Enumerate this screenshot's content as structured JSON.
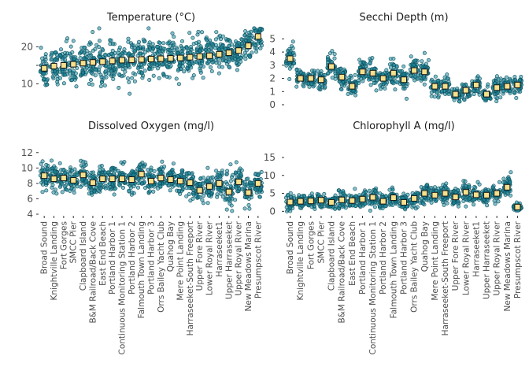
{
  "chart_data": {
    "type": "scatter",
    "sites": [
      "Broad Sound",
      "Knightville Landing",
      "Fort Gorges",
      "SMCC Pier",
      "Clapboard Island",
      "B&M Railroad/Back Cove",
      "East End Beach",
      "Portland Harbor 1",
      "Continuous Monitoring Station 1",
      "Portland Harbor 2",
      "Falmouth Town Landing",
      "Portland Harbor 3",
      "Orrs Bailey Yacht Club",
      "Quahog Bay",
      "Mere Point Landing",
      "Harraseeket-South Freeport",
      "Upper Fore River",
      "Lower Royal River",
      "Harraseeket1",
      "Upper Harraseeket",
      "Upper Royal River",
      "New Meadows Marina",
      "Presumpscot River"
    ],
    "panels": [
      {
        "id": "temperature",
        "title": "Temperature (°C)",
        "ylim": [
          5,
          25
        ],
        "yticks": [
          10,
          15,
          20
        ],
        "ytick_labels": [
          "10",
          "",
          "20"
        ],
        "order": [
          0,
          1,
          2,
          3,
          4,
          5,
          6,
          7,
          8,
          9,
          10,
          11,
          12,
          13,
          14,
          15,
          16,
          17,
          18,
          19,
          20,
          21,
          22
        ],
        "means": [
          14.2,
          14.8,
          15.0,
          15.3,
          15.6,
          15.8,
          16.0,
          16.2,
          16.4,
          16.5,
          16.6,
          16.7,
          16.8,
          16.9,
          17.0,
          17.2,
          17.4,
          17.6,
          18.0,
          18.4,
          19.0,
          20.3,
          22.8
        ],
        "spread": [
          5,
          4.5,
          5,
          4.5,
          5,
          5,
          5,
          5,
          4,
          5,
          5,
          5,
          5,
          5,
          4.5,
          5,
          4.5,
          4.5,
          4.5,
          4,
          4.5,
          4,
          3
        ]
      },
      {
        "id": "secchi",
        "title": "Secchi Depth (m)",
        "ylim": [
          -0.3,
          5.8
        ],
        "yticks": [
          0,
          1,
          2,
          3,
          4,
          5
        ],
        "ytick_labels": [
          "0",
          "1",
          "2",
          "3",
          "4",
          "5"
        ],
        "order": [
          0,
          1,
          2,
          3,
          4,
          5,
          6,
          7,
          8,
          9,
          10,
          11,
          12,
          13,
          14,
          15,
          16,
          17,
          18,
          19,
          20,
          21,
          22
        ],
        "means": [
          3.5,
          2.0,
          2.0,
          1.9,
          2.9,
          2.1,
          1.4,
          2.5,
          2.4,
          2.0,
          2.4,
          1.9,
          2.6,
          2.5,
          1.4,
          1.4,
          0.8,
          1.1,
          1.5,
          0.8,
          1.3,
          1.4,
          1.5
        ],
        "spread": [
          1.0,
          0.6,
          0.6,
          0.6,
          1.0,
          0.7,
          0.7,
          0.8,
          0.8,
          0.7,
          0.8,
          0.7,
          0.8,
          0.8,
          0.6,
          0.6,
          0.4,
          0.5,
          0.6,
          0.4,
          0.6,
          0.6,
          0.6
        ]
      },
      {
        "id": "dissolved_oxygen",
        "title": "Dissolved Oxygen (mg/l)",
        "ylim": [
          4,
          13
        ],
        "yticks": [
          4,
          6,
          8,
          10,
          12
        ],
        "ytick_labels": [
          "4",
          "6",
          "8",
          "10",
          "12"
        ],
        "order": [
          0,
          1,
          2,
          3,
          4,
          5,
          6,
          7,
          8,
          9,
          10,
          11,
          12,
          13,
          14,
          15,
          16,
          17,
          18,
          19,
          20,
          21,
          22
        ],
        "means": [
          9.0,
          8.6,
          8.7,
          8.4,
          9.1,
          8.1,
          8.6,
          8.6,
          8.6,
          8.5,
          9.2,
          8.3,
          8.7,
          8.5,
          8.3,
          8.1,
          7.1,
          7.6,
          8.0,
          6.9,
          8.2,
          6.8,
          8.0
        ],
        "spread": [
          1.5,
          1.5,
          1.5,
          1.5,
          1.5,
          1.6,
          1.5,
          1.4,
          1.4,
          1.4,
          1.5,
          1.5,
          1.5,
          1.5,
          1.6,
          1.6,
          1.7,
          1.6,
          1.6,
          1.7,
          1.6,
          1.8,
          1.6
        ]
      },
      {
        "id": "chlorophyll",
        "title": "Chlorophyll A (mg/l)",
        "ylim": [
          -0.8,
          18.5
        ],
        "yticks": [
          0,
          5,
          10,
          15
        ],
        "ytick_labels": [
          "0",
          "5",
          "10",
          "15"
        ],
        "order": [
          0,
          1,
          2,
          3,
          4,
          5,
          6,
          7,
          8,
          9,
          10,
          11,
          12,
          13,
          14,
          15,
          16,
          17,
          18,
          19,
          20,
          21,
          22
        ],
        "means": [
          2.6,
          2.8,
          2.9,
          3.1,
          2.5,
          3.2,
          3.0,
          3.4,
          3.9,
          2.8,
          3.8,
          2.5,
          3.6,
          5.0,
          4.5,
          5.0,
          4.0,
          5.3,
          4.6,
          4.5,
          5.0,
          6.7,
          1.2
        ],
        "spread": [
          1.8,
          1.8,
          1.8,
          1.8,
          1.8,
          2.0,
          1.8,
          2.0,
          2.2,
          1.8,
          2.2,
          1.8,
          2.0,
          2.5,
          2.3,
          2.5,
          2.2,
          2.5,
          2.3,
          2.3,
          2.5,
          2.8,
          0.9
        ]
      }
    ]
  }
}
